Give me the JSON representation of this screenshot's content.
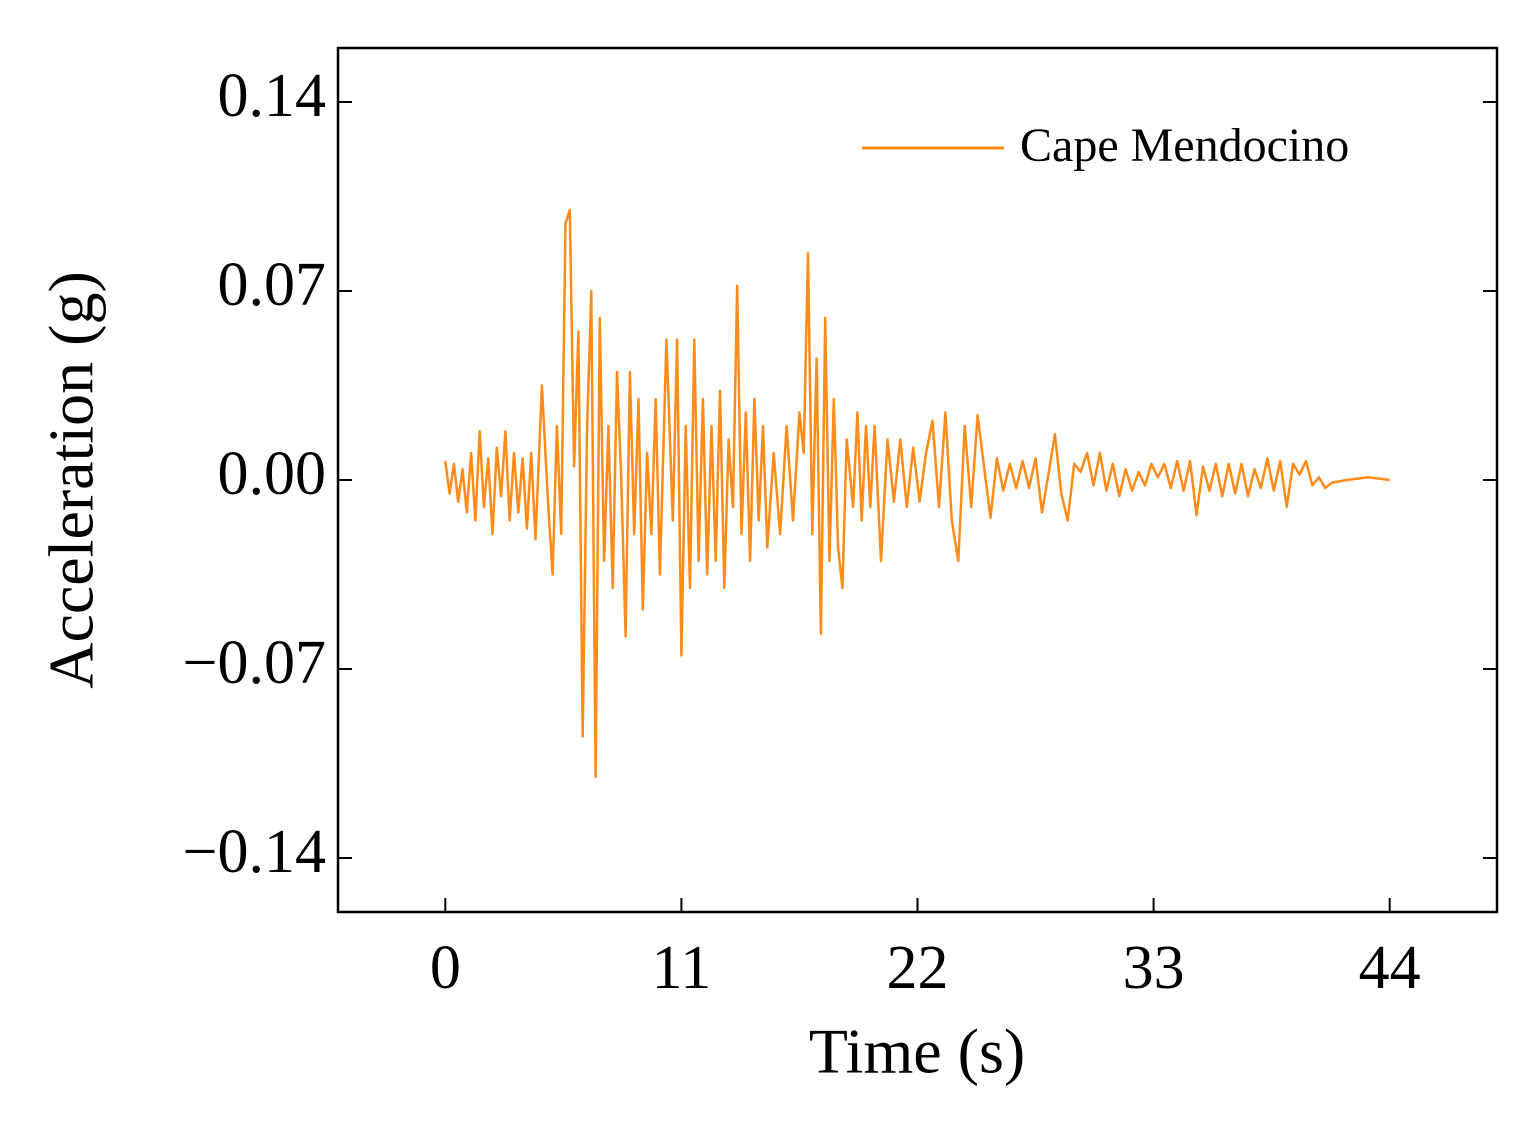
{
  "chart_data": {
    "type": "line",
    "xlabel": "Time (s)",
    "ylabel": "Acceleration (g)",
    "xlim": [
      -5,
      49
    ],
    "ylim": [
      -0.16,
      0.16
    ],
    "xticks": [
      0,
      11,
      22,
      33,
      44
    ],
    "yticks": [
      0.14,
      0.07,
      {
        "value": 0,
        "label": "0.00"
      },
      {
        "value": -0.07,
        "label": "−0.07"
      },
      {
        "value": -0.14,
        "label": "−0.14"
      }
    ],
    "legend": "upper right",
    "grid": false,
    "series": [
      {
        "name": "Cape Mendocino",
        "color": "#ff8c1a",
        "x": [
          0,
          0.2,
          0.4,
          0.6,
          0.8,
          1.0,
          1.2,
          1.4,
          1.6,
          1.8,
          2.0,
          2.2,
          2.4,
          2.6,
          2.8,
          3.0,
          3.2,
          3.4,
          3.6,
          3.8,
          4.0,
          4.2,
          4.5,
          4.8,
          5.0,
          5.2,
          5.4,
          5.6,
          5.8,
          6.0,
          6.2,
          6.4,
          6.6,
          6.8,
          7.0,
          7.2,
          7.4,
          7.6,
          7.8,
          8.0,
          8.2,
          8.4,
          8.6,
          8.8,
          9.0,
          9.2,
          9.4,
          9.6,
          9.8,
          10.0,
          10.3,
          10.6,
          10.8,
          11.0,
          11.2,
          11.4,
          11.6,
          11.8,
          12.0,
          12.2,
          12.4,
          12.6,
          12.8,
          13.0,
          13.2,
          13.4,
          13.6,
          13.8,
          14.0,
          14.2,
          14.4,
          14.6,
          14.8,
          15.0,
          15.3,
          15.6,
          15.9,
          16.2,
          16.5,
          16.7,
          16.9,
          17.1,
          17.3,
          17.5,
          17.7,
          17.9,
          18.1,
          18.3,
          18.5,
          18.7,
          19.0,
          19.2,
          19.4,
          19.6,
          19.8,
          20.0,
          20.3,
          20.6,
          20.9,
          21.2,
          21.5,
          21.8,
          22.1,
          22.4,
          22.7,
          23.0,
          23.3,
          23.6,
          23.9,
          24.2,
          24.5,
          24.8,
          25.1,
          25.4,
          25.7,
          26.0,
          26.3,
          26.6,
          26.9,
          27.2,
          27.5,
          27.8,
          28.1,
          28.4,
          28.7,
          29.0,
          29.3,
          29.6,
          29.9,
          30.2,
          30.5,
          30.8,
          31.1,
          31.4,
          31.7,
          32.0,
          32.3,
          32.6,
          32.9,
          33.2,
          33.5,
          33.8,
          34.1,
          34.4,
          34.7,
          35.0,
          35.3,
          35.6,
          35.9,
          36.2,
          36.5,
          36.8,
          37.1,
          37.4,
          37.7,
          38.0,
          38.3,
          38.6,
          38.9,
          39.2,
          39.5,
          39.8,
          40.1,
          40.4,
          40.7,
          41.0,
          41.3,
          42.0,
          43.0,
          44.0
        ],
        "values": [
          0.007,
          -0.005,
          0.006,
          -0.008,
          0.004,
          -0.012,
          0.01,
          -0.015,
          0.018,
          -0.01,
          0.008,
          -0.02,
          0.012,
          -0.006,
          0.018,
          -0.015,
          0.01,
          -0.012,
          0.008,
          -0.018,
          0.01,
          -0.022,
          0.035,
          -0.01,
          -0.035,
          0.02,
          -0.02,
          0.095,
          0.1,
          0.005,
          0.055,
          -0.095,
          0.018,
          0.07,
          -0.11,
          0.06,
          -0.03,
          0.02,
          -0.04,
          0.04,
          0.0,
          -0.058,
          0.04,
          -0.02,
          0.03,
          -0.048,
          0.01,
          -0.02,
          0.03,
          -0.035,
          0.052,
          -0.015,
          0.052,
          -0.065,
          0.02,
          -0.04,
          0.052,
          -0.03,
          0.03,
          -0.035,
          0.02,
          -0.03,
          0.033,
          -0.04,
          0.015,
          -0.01,
          0.072,
          -0.02,
          0.025,
          -0.03,
          0.03,
          -0.015,
          0.02,
          -0.025,
          0.01,
          -0.02,
          0.02,
          -0.015,
          0.025,
          0.01,
          0.084,
          -0.02,
          0.045,
          -0.057,
          0.06,
          -0.03,
          0.03,
          -0.025,
          -0.04,
          0.015,
          -0.01,
          0.025,
          -0.015,
          0.02,
          -0.01,
          0.02,
          -0.03,
          0.015,
          -0.008,
          0.015,
          -0.01,
          0.012,
          -0.008,
          0.01,
          0.022,
          -0.01,
          0.025,
          -0.015,
          -0.03,
          0.02,
          -0.01,
          0.024,
          0.005,
          -0.014,
          0.008,
          -0.004,
          0.006,
          -0.003,
          0.007,
          -0.003,
          0.008,
          -0.012,
          0.002,
          0.017,
          -0.005,
          -0.015,
          0.006,
          0.003,
          0.01,
          -0.002,
          0.01,
          -0.004,
          0.006,
          -0.006,
          0.004,
          -0.004,
          0.003,
          -0.002,
          0.006,
          0.001,
          0.006,
          -0.003,
          0.007,
          -0.004,
          0.007,
          -0.013,
          0.005,
          -0.004,
          0.006,
          -0.006,
          0.006,
          -0.005,
          0.006,
          -0.006,
          0.004,
          -0.003,
          0.008,
          -0.004,
          0.007,
          -0.01,
          0.006,
          0.002,
          0.007,
          -0.002,
          0.001,
          -0.003,
          -0.001,
          0.0,
          0.001,
          0.0
        ]
      }
    ]
  }
}
